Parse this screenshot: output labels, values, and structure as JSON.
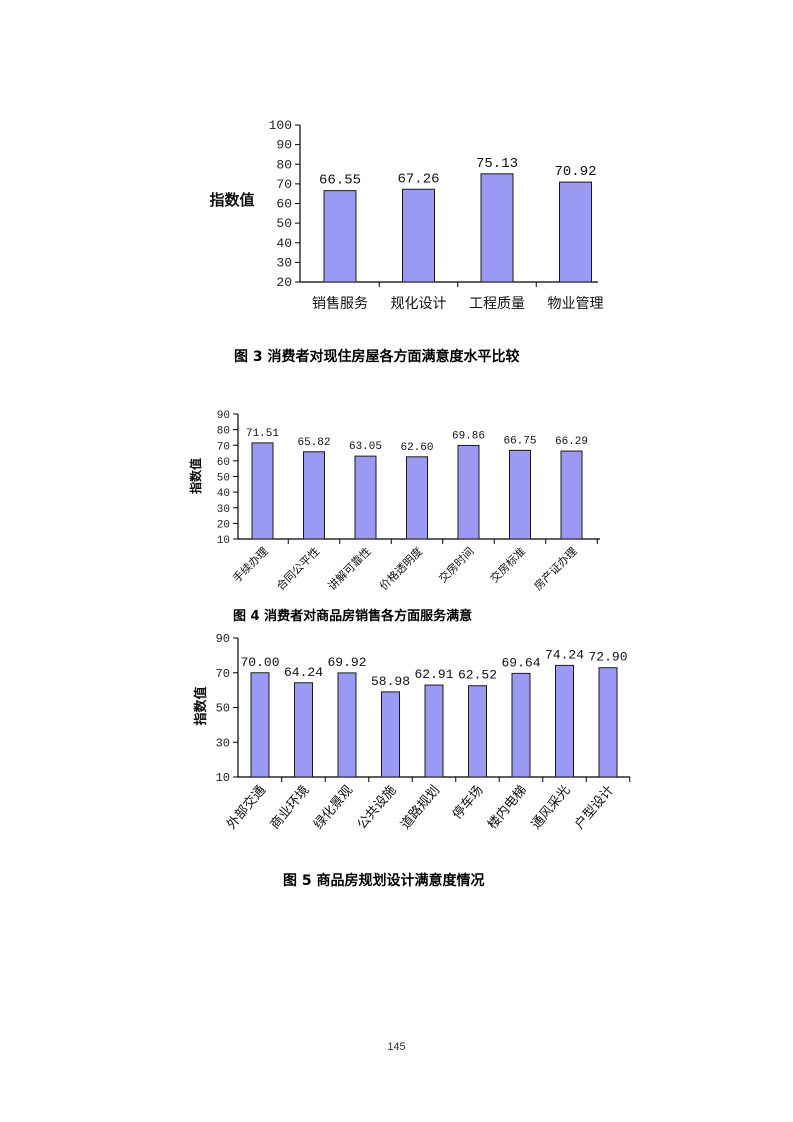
{
  "chart_data": [
    {
      "type": "bar",
      "ylabel": "指数值",
      "ylim": [
        20,
        100
      ],
      "yticks": [
        20,
        30,
        40,
        50,
        60,
        70,
        80,
        90,
        100
      ],
      "categories": [
        "销售服务",
        "规化设计",
        "工程质量",
        "物业管理"
      ],
      "values": [
        66.55,
        67.26,
        75.13,
        70.92
      ],
      "value_labels": [
        "66.55",
        "67.26",
        "75.13",
        "70.92"
      ],
      "bar_color": "#9a9af5"
    },
    {
      "type": "bar",
      "ylabel": "指数值",
      "ylim": [
        10,
        90
      ],
      "yticks": [
        10,
        20,
        30,
        40,
        50,
        60,
        70,
        80,
        90
      ],
      "categories": [
        "手续办理",
        "合同公平性",
        "讲解可靠性",
        "价格透明度",
        "交房时间",
        "交房标准",
        "房产证办理"
      ],
      "values": [
        71.51,
        65.82,
        63.05,
        62.6,
        69.86,
        66.75,
        66.29
      ],
      "value_labels": [
        "71.51",
        "65.82",
        "63.05",
        "62.60",
        "69.86",
        "66.75",
        "66.29"
      ],
      "bar_color": "#9a9af5"
    },
    {
      "type": "bar",
      "ylabel": "指数值",
      "ylim": [
        10,
        90
      ],
      "yticks": [
        10,
        30,
        50,
        70,
        90
      ],
      "categories": [
        "外部交通",
        "商业环境",
        "绿化景观",
        "公共设施",
        "道路规划",
        "停车场",
        "楼内电梯",
        "通风采光",
        "户型设计"
      ],
      "values": [
        70.0,
        64.24,
        69.92,
        58.98,
        62.91,
        62.52,
        69.64,
        74.24,
        72.9
      ],
      "value_labels": [
        "70.00",
        "64.24",
        "69.92",
        "58.98",
        "62.91",
        "62.52",
        "69.64",
        "74.24",
        "72.90"
      ],
      "bar_color": "#9a9af5"
    }
  ],
  "captions": {
    "fig3": "图 3  消费者对现住房屋各方面满意度水平比较",
    "fig4": "图  4  消费者对商品房销售各方面服务满意",
    "fig5": "图 5  商品房规划设计满意度情况"
  },
  "page_number": "145"
}
